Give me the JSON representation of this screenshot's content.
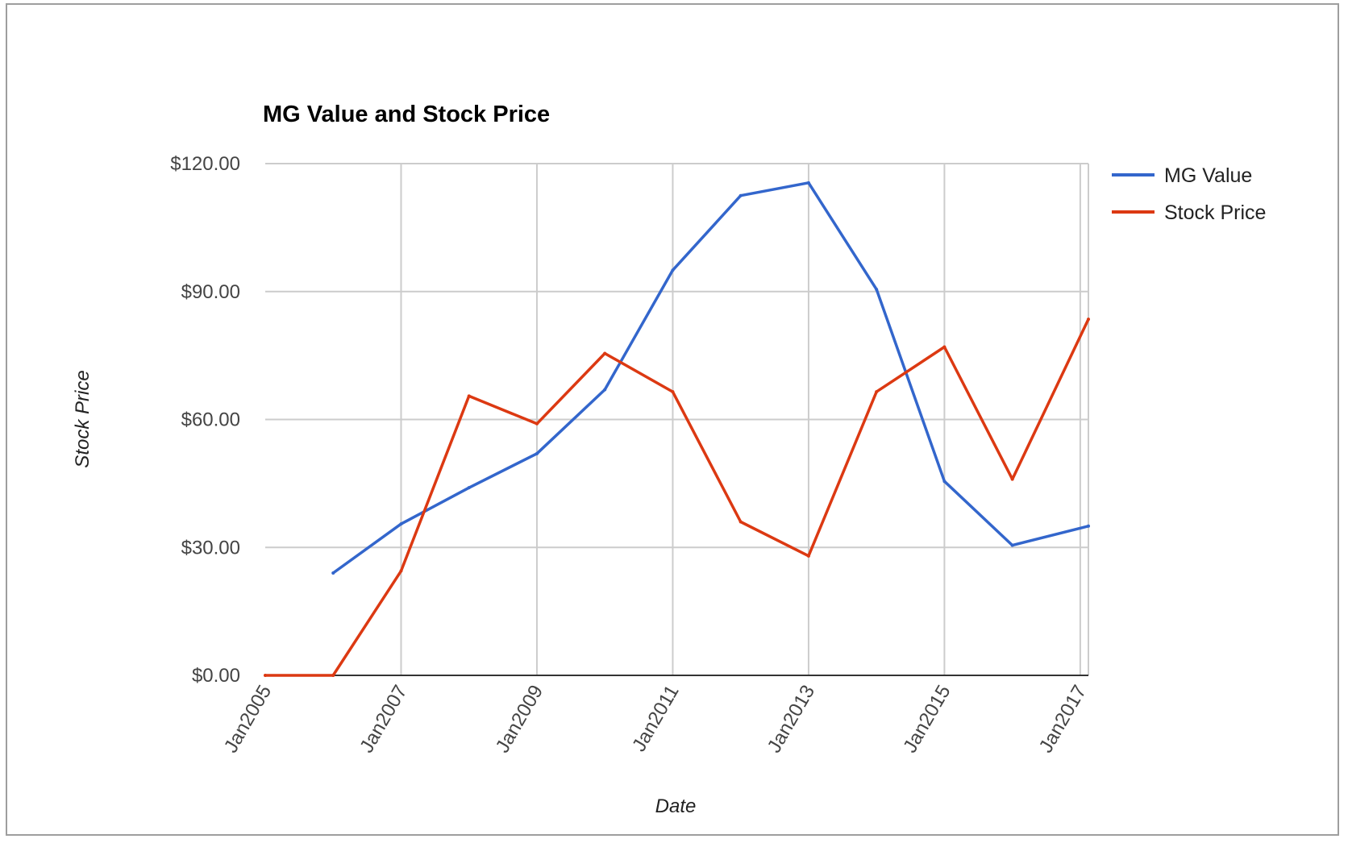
{
  "chart_data": {
    "type": "line",
    "title": "MG Value and Stock Price",
    "xlabel": "Date",
    "ylabel": "Stock Price",
    "ylim": [
      0,
      120
    ],
    "yticks": [
      0,
      30,
      60,
      90,
      120
    ],
    "ytick_labels": [
      "$0.00",
      "$30.00",
      "$60.00",
      "$90.00",
      "$120.00"
    ],
    "xlim": [
      2005.0,
      2017.12
    ],
    "xticks": [
      2005,
      2007,
      2009,
      2011,
      2013,
      2015,
      2017
    ],
    "xtick_labels": [
      "Jan2005",
      "Jan2007",
      "Jan2009",
      "Jan2011",
      "Jan2013",
      "Jan2015",
      "Jan2017"
    ],
    "grid": true,
    "legend_position": "right",
    "series": [
      {
        "name": "MG Value",
        "color": "#3366cc",
        "x": [
          2006.0,
          2007.0,
          2008.0,
          2009.0,
          2010.0,
          2011.0,
          2012.0,
          2013.0,
          2014.0,
          2015.0,
          2016.0,
          2017.12
        ],
        "values": [
          24,
          35.5,
          44,
          52,
          67,
          95,
          112.5,
          115.5,
          90.5,
          45.5,
          30.5,
          35
        ]
      },
      {
        "name": "Stock Price",
        "color": "#dc3912",
        "x": [
          2005.0,
          2006.0,
          2007.0,
          2008.0,
          2009.0,
          2010.0,
          2011.0,
          2012.0,
          2013.0,
          2014.0,
          2015.0,
          2016.0,
          2017.12
        ],
        "values": [
          0,
          0,
          24.5,
          65.5,
          59,
          75.5,
          66.5,
          36,
          28,
          66.5,
          77,
          46,
          83.5
        ]
      }
    ]
  }
}
